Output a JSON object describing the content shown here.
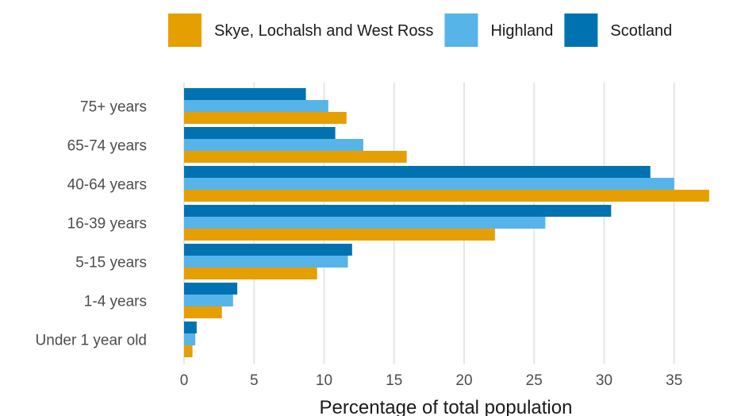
{
  "chart_data": {
    "type": "bar",
    "orientation": "horizontal",
    "title": "",
    "xlabel": "Percentage of total population",
    "ylabel": "",
    "xlim": [
      0,
      37.5
    ],
    "xticks": [
      0,
      5,
      10,
      15,
      20,
      25,
      30,
      35
    ],
    "grid": true,
    "legend_position": "top",
    "categories": [
      "75+ years",
      "65-74 years",
      "40-64 years",
      "16-39 years",
      "5-15 years",
      "1-4 years",
      "Under 1 year old"
    ],
    "series": [
      {
        "name": "Skye, Lochalsh and West Ross",
        "color": "#E69F00",
        "values": [
          11.6,
          15.9,
          37.5,
          22.2,
          9.5,
          2.7,
          0.6
        ]
      },
      {
        "name": "Highland",
        "color": "#56B4E9",
        "values": [
          10.3,
          12.8,
          35.0,
          25.8,
          11.7,
          3.5,
          0.8
        ]
      },
      {
        "name": "Scotland",
        "color": "#0072B2",
        "values": [
          8.7,
          10.8,
          33.3,
          30.5,
          12.0,
          3.8,
          0.9
        ]
      }
    ]
  }
}
